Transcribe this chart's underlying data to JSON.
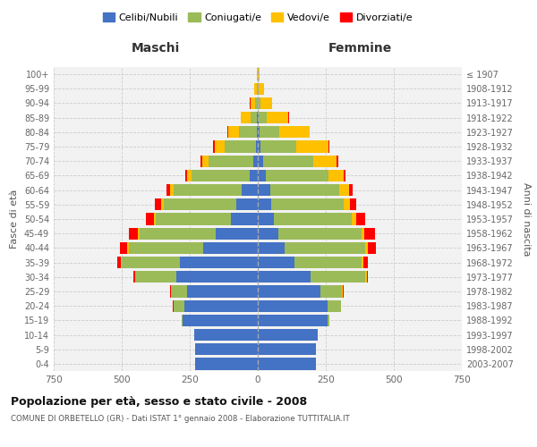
{
  "age_groups": [
    "0-4",
    "5-9",
    "10-14",
    "15-19",
    "20-24",
    "25-29",
    "30-34",
    "35-39",
    "40-44",
    "45-49",
    "50-54",
    "55-59",
    "60-64",
    "65-69",
    "70-74",
    "75-79",
    "80-84",
    "85-89",
    "90-94",
    "95-99",
    "100+"
  ],
  "birth_years": [
    "2003-2007",
    "1998-2002",
    "1993-1997",
    "1988-1992",
    "1983-1987",
    "1978-1982",
    "1973-1977",
    "1968-1972",
    "1963-1967",
    "1958-1962",
    "1953-1957",
    "1948-1952",
    "1943-1947",
    "1938-1942",
    "1933-1937",
    "1928-1932",
    "1923-1927",
    "1918-1922",
    "1913-1917",
    "1908-1912",
    "≤ 1907"
  ],
  "colors": {
    "celibi": "#4472C4",
    "coniugati": "#9BBB59",
    "vedovi": "#FFC000",
    "divorziati": "#FF0000"
  },
  "maschi": {
    "celibi": [
      230,
      230,
      235,
      275,
      270,
      260,
      300,
      285,
      200,
      155,
      100,
      80,
      60,
      30,
      15,
      8,
      4,
      2,
      1,
      0,
      0
    ],
    "coniugati": [
      0,
      0,
      0,
      5,
      40,
      60,
      150,
      215,
      275,
      280,
      275,
      265,
      250,
      215,
      165,
      115,
      65,
      25,
      8,
      3,
      1
    ],
    "vedovi": [
      0,
      0,
      0,
      0,
      0,
      0,
      2,
      3,
      5,
      5,
      8,
      10,
      12,
      15,
      25,
      35,
      40,
      35,
      18,
      10,
      3
    ],
    "divorziati": [
      0,
      0,
      0,
      0,
      2,
      3,
      5,
      15,
      25,
      35,
      28,
      22,
      15,
      8,
      5,
      5,
      3,
      2,
      1,
      0,
      0
    ]
  },
  "femmine": {
    "celibi": [
      215,
      215,
      220,
      255,
      255,
      230,
      195,
      135,
      100,
      75,
      60,
      50,
      45,
      30,
      20,
      10,
      5,
      3,
      1,
      0,
      0
    ],
    "coniugati": [
      0,
      0,
      0,
      8,
      50,
      80,
      200,
      245,
      295,
      305,
      285,
      265,
      255,
      230,
      185,
      130,
      75,
      30,
      10,
      4,
      1
    ],
    "vedovi": [
      0,
      0,
      0,
      0,
      0,
      2,
      5,
      8,
      10,
      12,
      18,
      25,
      35,
      55,
      85,
      120,
      110,
      80,
      40,
      18,
      5
    ],
    "divorziati": [
      0,
      0,
      0,
      0,
      2,
      3,
      5,
      15,
      30,
      38,
      32,
      22,
      15,
      8,
      5,
      3,
      2,
      1,
      0,
      0,
      0
    ]
  },
  "xlim": 750,
  "title": "Popolazione per età, sesso e stato civile - 2008",
  "subtitle": "COMUNE DI ORBETELLO (GR) - Dati ISTAT 1° gennaio 2008 - Elaborazione TUTTITALIA.IT",
  "ylabel_left": "Fasce di età",
  "ylabel_right": "Anni di nascita",
  "xlabel_left": "Maschi",
  "xlabel_right": "Femmine",
  "legend_labels": [
    "Celibi/Nubili",
    "Coniugati/e",
    "Vedovi/e",
    "Divorziati/e"
  ],
  "background_color": "#FFFFFF",
  "plot_bg_color": "#F2F2F2",
  "grid_color": "#CCCCCC"
}
